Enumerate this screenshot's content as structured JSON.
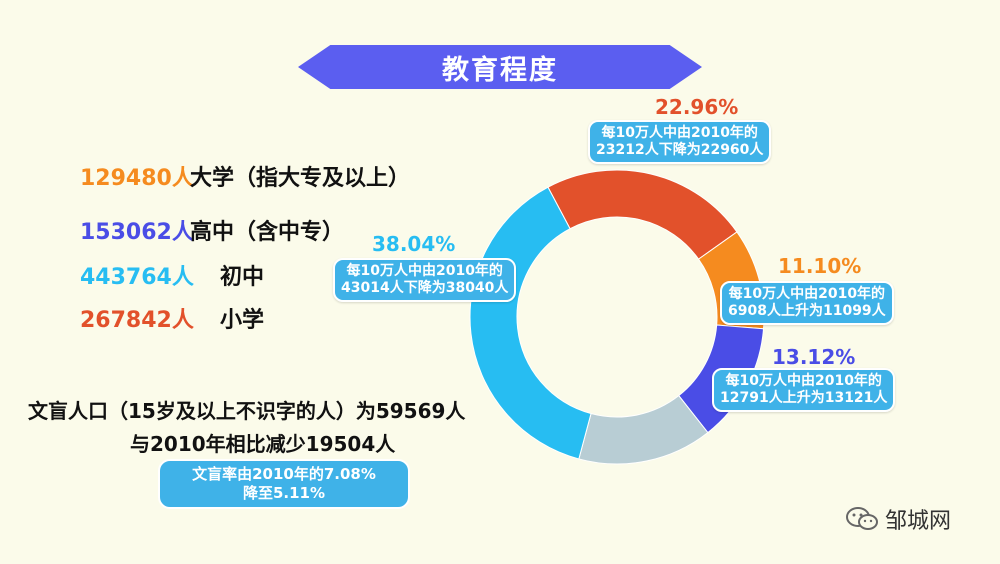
{
  "title": "教育程度",
  "legend": [
    {
      "value": "129480人",
      "label": "大学（指大专及以上）",
      "color": "#f58b1f"
    },
    {
      "value": "153062人",
      "label": "高中（含中专）",
      "color": "#4a4de6"
    },
    {
      "value": "443764人",
      "label": "初中",
      "color": "#27bdf2"
    },
    {
      "value": "267842人",
      "label": "小学",
      "color": "#e2512b"
    }
  ],
  "illiteracy": {
    "line1": "文盲人口（15岁及以上不识字的人）为59569人",
    "line2": "与2010年相比减少19504人",
    "box_line1": "文盲率由2010年的7.08%",
    "box_line2": "降至5.11%"
  },
  "callouts": {
    "primary": {
      "pct": "22.96%",
      "line1": "每10万人中由2010年的",
      "line2": "23212人下降为22960人"
    },
    "junior": {
      "pct": "38.04%",
      "line1": "每10万人中由2010年的",
      "line2": "43014人下降为38040人"
    },
    "college": {
      "pct": "11.10%",
      "line1": "每10万人中由2010年的",
      "line2": "6908人上升为11099人"
    },
    "senior": {
      "pct": "13.12%",
      "line1": "每10万人中由2010年的",
      "line2": "12791人上升为13121人"
    }
  },
  "watermark": "邹城网",
  "chart_data": {
    "type": "pie",
    "donut": true,
    "title": "教育程度",
    "slices": [
      {
        "label": "小学",
        "value": 22.96,
        "color": "#e2512b"
      },
      {
        "label": "大学（指大专及以上）",
        "value": 11.1,
        "color": "#f58b1f"
      },
      {
        "label": "高中（含中专）",
        "value": 13.12,
        "color": "#4a4de6"
      },
      {
        "label": "",
        "value": 14.78,
        "color": "#b8cdd4"
      },
      {
        "label": "初中",
        "value": 38.04,
        "color": "#27bdf2"
      }
    ]
  }
}
